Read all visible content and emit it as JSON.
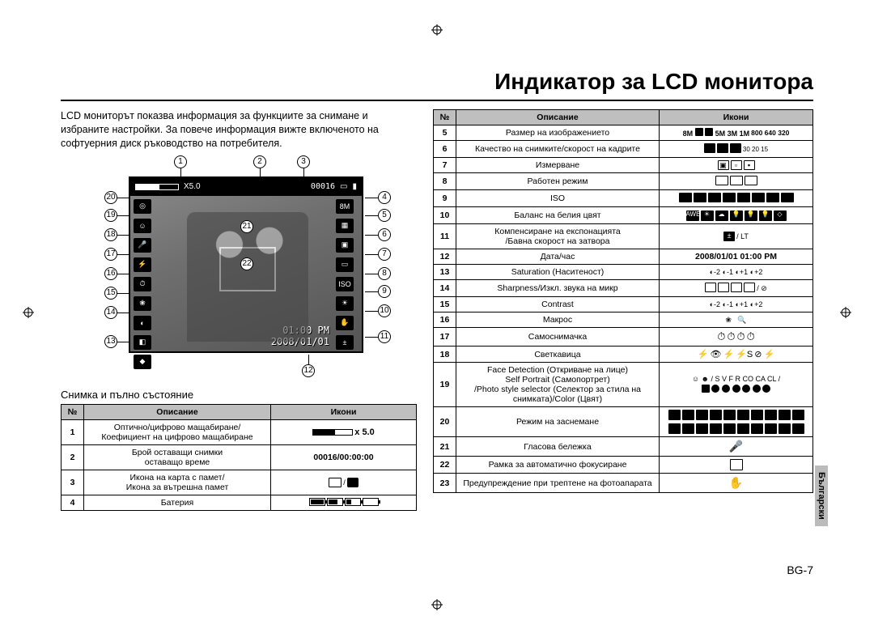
{
  "header": {
    "title": "Индикатор за LCD монитора"
  },
  "intro": "LCD мониторът показва информация за функциите за снимане и избраните настройки. За повече информация вижте включеното на софтуерния диск ръководство на потребителя.",
  "lcd": {
    "zoom_label": "X5.0",
    "counter": "00016",
    "time": "01:00 PM",
    "date": "2008/01/01",
    "size_label": "8M"
  },
  "left": {
    "caption": "Снимка и пълно състояние",
    "columns": {
      "num": "№",
      "desc": "Описание",
      "icons": "Икони"
    },
    "rows": [
      {
        "n": "1",
        "desc": "Оптично/цифрово мащабиране/\nКоефициент на цифрово мащабиране",
        "icons_text": "x 5.0",
        "icons_type": "zoom"
      },
      {
        "n": "2",
        "desc": "Брой оставащи снимки\nоставащо време",
        "icons_text": "00016/00:00:00",
        "icons_type": "text"
      },
      {
        "n": "3",
        "desc": "Икона на карта с памет/\nИкона за вътрешна памет",
        "icons_text": "",
        "icons_type": "card"
      },
      {
        "n": "4",
        "desc": "Батерия",
        "icons_text": "",
        "icons_type": "battery"
      }
    ]
  },
  "right": {
    "columns": {
      "num": "№",
      "desc": "Описание",
      "icons": "Икони"
    },
    "rows": [
      {
        "n": "5",
        "desc": "Размер на изображението",
        "icons_text": "8M 7M 6M 5M 3M 1M\n800 640 320",
        "icons_type": "sizes"
      },
      {
        "n": "6",
        "desc": "Качество на снимките/скорост на кадрите",
        "icons_text": "",
        "icons_type": "quality"
      },
      {
        "n": "7",
        "desc": "Измерване",
        "icons_text": "",
        "icons_type": "meter"
      },
      {
        "n": "8",
        "desc": "Работен режим",
        "icons_text": "",
        "icons_type": "drive"
      },
      {
        "n": "9",
        "desc": "ISO",
        "icons_text": "",
        "icons_type": "iso"
      },
      {
        "n": "10",
        "desc": "Баланс на белия цвят",
        "icons_text": "",
        "icons_type": "wb"
      },
      {
        "n": "11",
        "desc": "Компенсиране на експонацията\n/Бавна скорост на затвора",
        "icons_text": " / LT",
        "icons_type": "ev"
      },
      {
        "n": "12",
        "desc": "Дата/час",
        "icons_text": "2008/01/01 01:00 PM",
        "icons_type": "text"
      },
      {
        "n": "13",
        "desc": "Saturation (Наситеност)",
        "icons_text": "-2 -1 +1 +2",
        "icons_type": "sat"
      },
      {
        "n": "14",
        "desc": "Sharpness/Изкл. звука на микр",
        "icons_text": "",
        "icons_type": "sharp"
      },
      {
        "n": "15",
        "desc": "Contrast",
        "icons_text": "-2 -1 +1 +2",
        "icons_type": "contrast"
      },
      {
        "n": "16",
        "desc": "Макрос",
        "icons_text": "",
        "icons_type": "macro"
      },
      {
        "n": "17",
        "desc": "Самоснимачка",
        "icons_text": "",
        "icons_type": "timer"
      },
      {
        "n": "18",
        "desc": "Светкавица",
        "icons_text": "",
        "icons_type": "flash"
      },
      {
        "n": "19",
        "desc": "Face Detection (Откриване на лице)\nSelf Portrait (Самопортрет)\n/Photo style selector (Селектор за стила на снимката)/Color (Цвят)",
        "icons_text": "",
        "icons_type": "face"
      },
      {
        "n": "20",
        "desc": "Режим на заснемане",
        "icons_text": "",
        "icons_type": "mode"
      },
      {
        "n": "21",
        "desc": "Гласова бележка",
        "icons_text": "",
        "icons_type": "voice"
      },
      {
        "n": "22",
        "desc": "Рамка за автоматично фокусиране",
        "icons_text": "",
        "icons_type": "af"
      },
      {
        "n": "23",
        "desc": "Предупреждение при трептене на фотоапарата",
        "icons_text": "",
        "icons_type": "shake"
      }
    ]
  },
  "callouts": {
    "top": [
      "1",
      "2",
      "3"
    ],
    "right": [
      "4",
      "5",
      "6",
      "7",
      "8",
      "9",
      "10",
      "11"
    ],
    "bottom": [
      "12"
    ],
    "left": [
      "20",
      "19",
      "18",
      "17",
      "16",
      "15",
      "14",
      "13"
    ],
    "inner": [
      "21",
      "22"
    ]
  },
  "footer": {
    "page": "BG-7",
    "lang_tab": "Български"
  }
}
